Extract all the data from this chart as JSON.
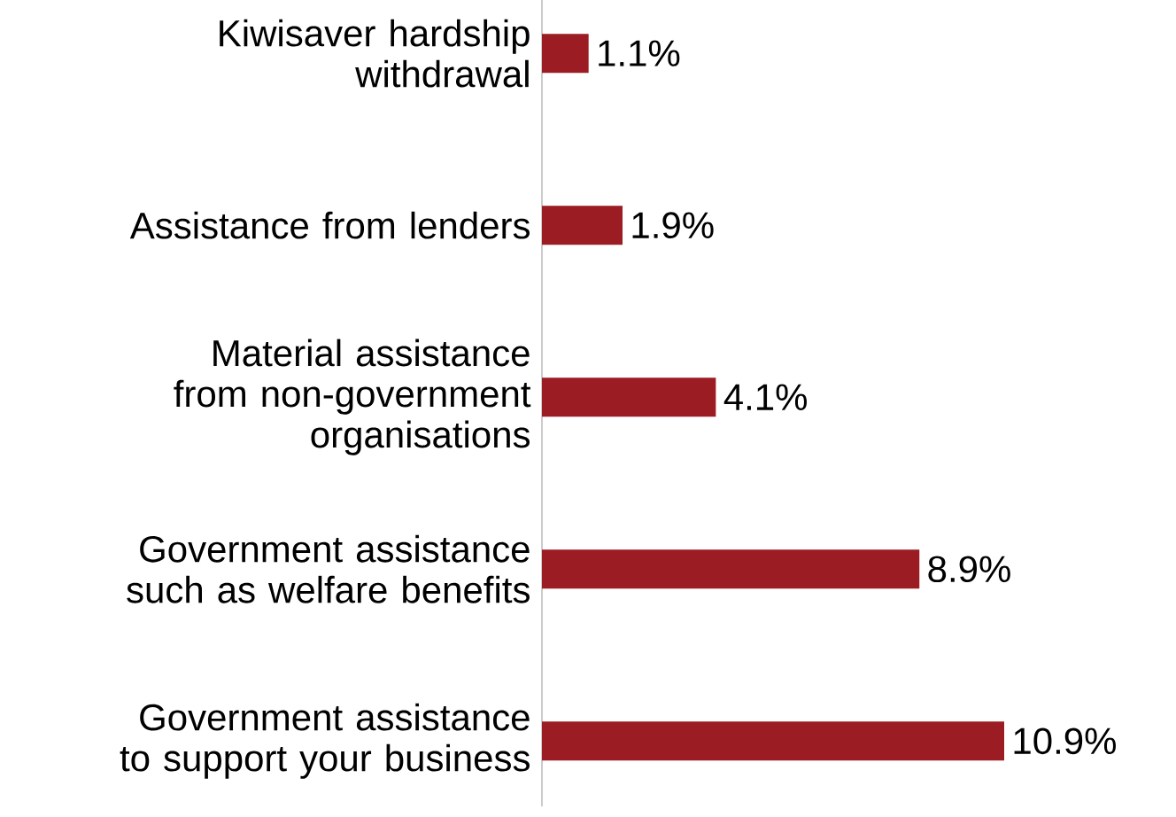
{
  "chart_data": {
    "type": "bar",
    "orientation": "horizontal",
    "categories": [
      "Kiwisaver hardship withdrawal",
      "Assistance from lenders",
      "Material assistance from non-government organisations",
      "Government assistance such as welfare benefits",
      "Government assistance to support your business"
    ],
    "values": [
      1.1,
      1.9,
      4.1,
      8.9,
      10.9
    ],
    "value_labels": [
      "1.1%",
      "1.9%",
      "4.1%",
      "8.9%",
      "10.9%"
    ],
    "color": "#9b1c22"
  }
}
